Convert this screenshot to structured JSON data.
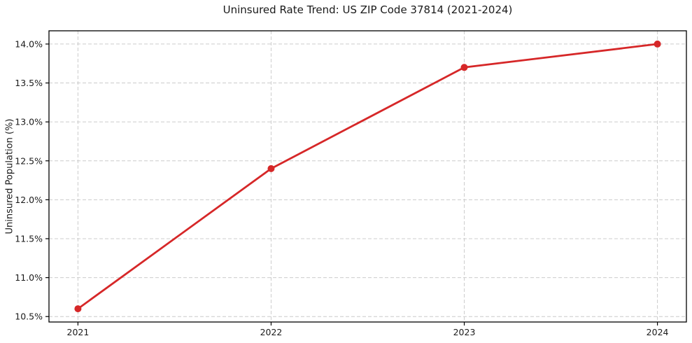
{
  "chart_data": {
    "type": "line",
    "title": "Uninsured Rate Trend: US ZIP Code 37814 (2021-2024)",
    "xlabel": "",
    "ylabel": "Uninsured Population (%)",
    "x": [
      2021,
      2022,
      2023,
      2024
    ],
    "values": [
      10.6,
      12.4,
      13.7,
      14.0
    ],
    "x_tick_labels": [
      "2021",
      "2022",
      "2023",
      "2024"
    ],
    "y_ticks": [
      10.5,
      11.0,
      11.5,
      12.0,
      12.5,
      13.0,
      13.5,
      14.0
    ],
    "y_tick_labels": [
      "10.5%",
      "11.0%",
      "11.5%",
      "12.0%",
      "12.5%",
      "13.0%",
      "13.5%",
      "14.0%"
    ],
    "xlim": [
      2020.85,
      2024.15
    ],
    "ylim": [
      10.43,
      14.17
    ],
    "grid": true,
    "grid_style": "dashed",
    "legend_position": "none",
    "marker": "circle",
    "colors": {
      "line": "#d62728",
      "marker": "#d62728",
      "grid": "#cccccc",
      "spine": "#000000",
      "text": "#1a1a1a",
      "background": "#ffffff"
    }
  }
}
